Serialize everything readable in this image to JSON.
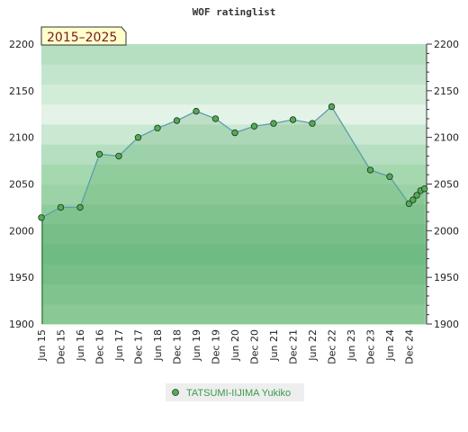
{
  "chart_data": {
    "type": "area",
    "title": "WOF ratinglist",
    "badge": "2015–2025",
    "ylim": [
      1900,
      2200
    ],
    "y_ticks": [
      1900,
      1950,
      2000,
      2050,
      2100,
      2150,
      2200
    ],
    "x_tick_labels": [
      "Jun 15",
      "Dec 15",
      "Jun 16",
      "Dec 16",
      "Jun 17",
      "Dec 17",
      "Jun 18",
      "Dec 18",
      "Jun 19",
      "Dec 19",
      "Jun 20",
      "Dec 20",
      "Jun 21",
      "Dec 21",
      "Jun 22",
      "Dec 22",
      "Jun 23",
      "Dec 23",
      "Jun 24",
      "Dec 24"
    ],
    "series": [
      {
        "name": "TATSUMI-IIJIMA Yukiko",
        "color": "#5aa0a8",
        "marker_color": "#4caf50",
        "points": [
          {
            "x": 0.0,
            "y": 2014
          },
          {
            "x": 1.0,
            "y": 2025
          },
          {
            "x": 2.0,
            "y": 2025
          },
          {
            "x": 3.0,
            "y": 2082
          },
          {
            "x": 4.0,
            "y": 2080
          },
          {
            "x": 5.0,
            "y": 2100
          },
          {
            "x": 6.0,
            "y": 2110
          },
          {
            "x": 7.0,
            "y": 2118
          },
          {
            "x": 8.0,
            "y": 2128
          },
          {
            "x": 9.0,
            "y": 2120
          },
          {
            "x": 10.0,
            "y": 2105
          },
          {
            "x": 11.0,
            "y": 2112
          },
          {
            "x": 12.0,
            "y": 2115
          },
          {
            "x": 13.0,
            "y": 2119
          },
          {
            "x": 14.0,
            "y": 2115
          },
          {
            "x": 15.0,
            "y": 2133
          },
          {
            "x": 17.0,
            "y": 2065
          },
          {
            "x": 18.0,
            "y": 2058
          },
          {
            "x": 19.0,
            "y": 2029
          },
          {
            "x": 19.2,
            "y": 2033
          },
          {
            "x": 19.4,
            "y": 2038
          },
          {
            "x": 19.6,
            "y": 2043
          },
          {
            "x": 19.8,
            "y": 2045
          }
        ]
      }
    ],
    "band_colors": [
      "#9bd3a6",
      "#8fcc9c",
      "#82c593",
      "#78c08c",
      "#82c593",
      "#8fcc9c",
      "#9bd3a6",
      "#a6d8b0",
      "#b6dfc1",
      "#cbe8d3",
      "#e3f3e8",
      "#d3ecda",
      "#c4e5cd",
      "#b6dfc1"
    ]
  }
}
